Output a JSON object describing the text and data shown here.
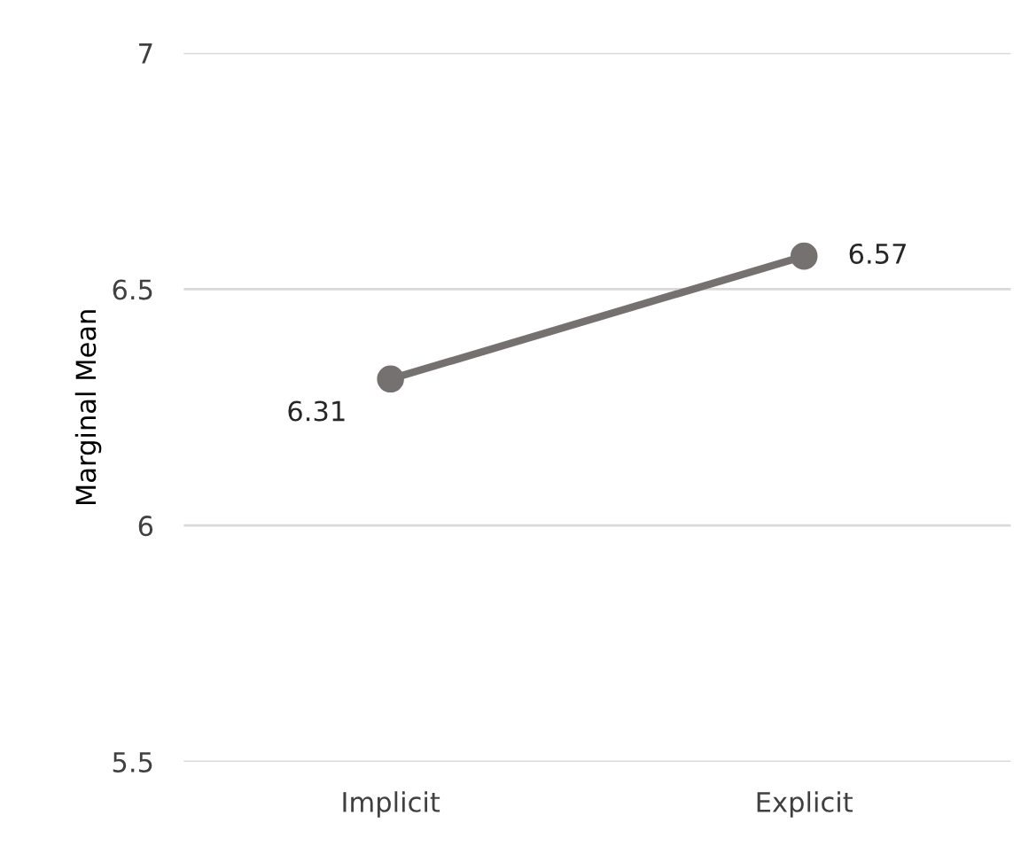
{
  "chart_data": {
    "type": "line",
    "ylabel": "Marginal Mean",
    "categories": [
      "Implicit",
      "Explicit"
    ],
    "series": [
      {
        "color": "#767171",
        "values": [
          6.31,
          6.57
        ]
      }
    ],
    "data_labels": true,
    "ylim": [
      5.5,
      7
    ],
    "yticks": [
      5.5,
      6,
      6.5,
      7
    ],
    "grid": "y",
    "marker": "circle",
    "line_style": "solid",
    "legend": false
  }
}
